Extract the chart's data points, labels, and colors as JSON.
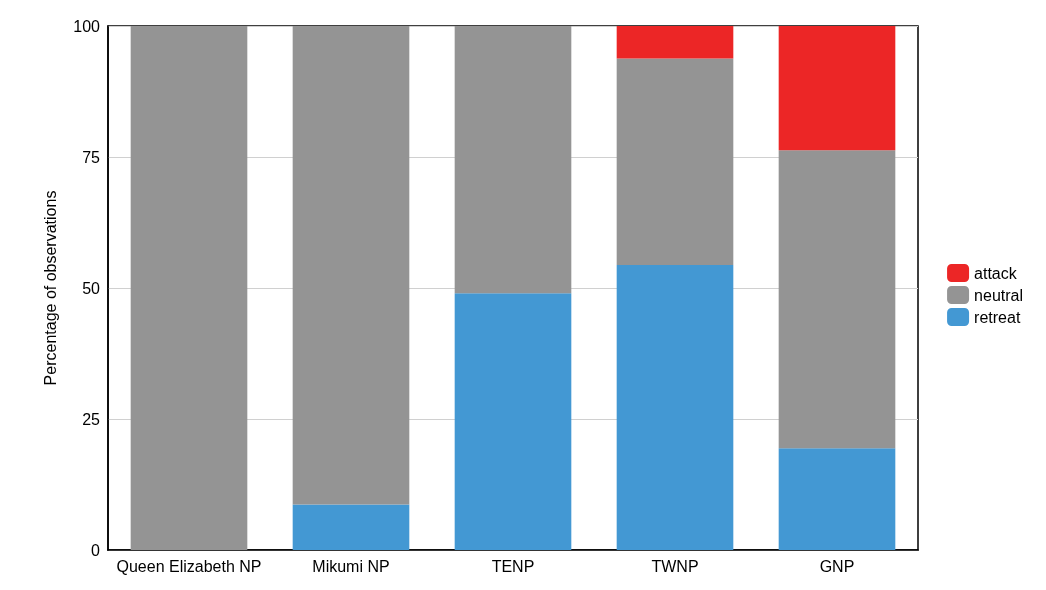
{
  "chart_data": {
    "type": "bar",
    "stacked": true,
    "ylabel": "Percentage of observations",
    "categories": [
      "Queen Elizabeth NP",
      "Mikumi NP",
      "TENP",
      "TWNP",
      "GNP"
    ],
    "series": [
      {
        "name": "retreat",
        "color": "#4398d3",
        "values": [
          0,
          8.7,
          49,
          54.4,
          19.4
        ]
      },
      {
        "name": "neutral",
        "color": "#949494",
        "values": [
          100,
          91.3,
          51,
          39.4,
          56.9
        ]
      },
      {
        "name": "attack",
        "color": "#ec2626",
        "values": [
          0,
          0,
          0,
          6.2,
          23.7
        ]
      }
    ],
    "ylim": [
      0,
      100
    ],
    "yticks": [
      0,
      25,
      50,
      75,
      100
    ],
    "grid": "y",
    "legend": "right"
  }
}
